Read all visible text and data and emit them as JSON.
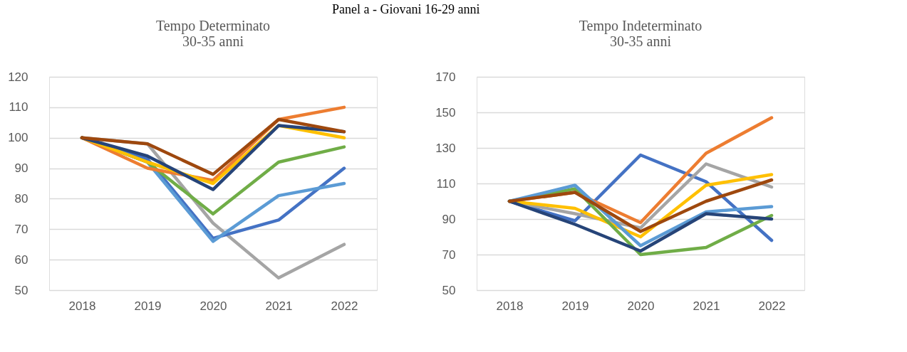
{
  "chart_data": [
    {
      "type": "line",
      "title": "Tempo Determinato\n30-35 anni",
      "annotations": [
        "Panel a - Giovani 16-29 anni"
      ],
      "categories": [
        "2018",
        "2019",
        "2020",
        "2021",
        "2022"
      ],
      "ylim": [
        50,
        120
      ],
      "yticks": [
        50,
        60,
        70,
        80,
        90,
        100,
        110,
        120
      ],
      "grid": "y",
      "legend": false,
      "line_style": "solid",
      "marker": "none",
      "series": [
        {
          "color": "#a5a5a5",
          "values": [
            100,
            98,
            72,
            54,
            65
          ]
        },
        {
          "color": "#4472c4",
          "values": [
            100,
            93,
            67,
            73,
            90
          ]
        },
        {
          "color": "#5b9bd5",
          "values": [
            100,
            92,
            66,
            81,
            85
          ]
        },
        {
          "color": "#70ad47",
          "values": [
            100,
            92,
            75,
            92,
            97
          ]
        },
        {
          "color": "#ed7d31",
          "values": [
            100,
            90,
            86,
            106,
            110
          ]
        },
        {
          "color": "#ffc000",
          "values": [
            100,
            92,
            85,
            104,
            100
          ]
        },
        {
          "color": "#264478",
          "values": [
            100,
            94,
            83,
            104,
            102
          ]
        },
        {
          "color": "#9e480e",
          "values": [
            100,
            98,
            88,
            106,
            102
          ]
        }
      ]
    },
    {
      "type": "line",
      "title": "Tempo Indeterminato\n30-35 anni",
      "categories": [
        "2018",
        "2019",
        "2020",
        "2021",
        "2022"
      ],
      "ylim": [
        50,
        170
      ],
      "yticks": [
        50,
        70,
        90,
        110,
        130,
        150,
        170
      ],
      "grid": "y",
      "legend": false,
      "line_style": "solid",
      "marker": "none",
      "series": [
        {
          "color": "#4472c4",
          "values": [
            100,
            89,
            126,
            111,
            78
          ]
        },
        {
          "color": "#ed7d31",
          "values": [
            100,
            105,
            88,
            127,
            147
          ]
        },
        {
          "color": "#a5a5a5",
          "values": [
            100,
            93,
            85,
            121,
            108
          ]
        },
        {
          "color": "#ffc000",
          "values": [
            100,
            96,
            80,
            109,
            115
          ]
        },
        {
          "color": "#70ad47",
          "values": [
            100,
            107,
            70,
            74,
            92
          ]
        },
        {
          "color": "#5b9bd5",
          "values": [
            100,
            109,
            75,
            94,
            97
          ]
        },
        {
          "color": "#264478",
          "values": [
            100,
            87,
            72,
            93,
            90
          ]
        },
        {
          "color": "#9e480e",
          "values": [
            100,
            105,
            83,
            100,
            112
          ]
        }
      ]
    }
  ]
}
